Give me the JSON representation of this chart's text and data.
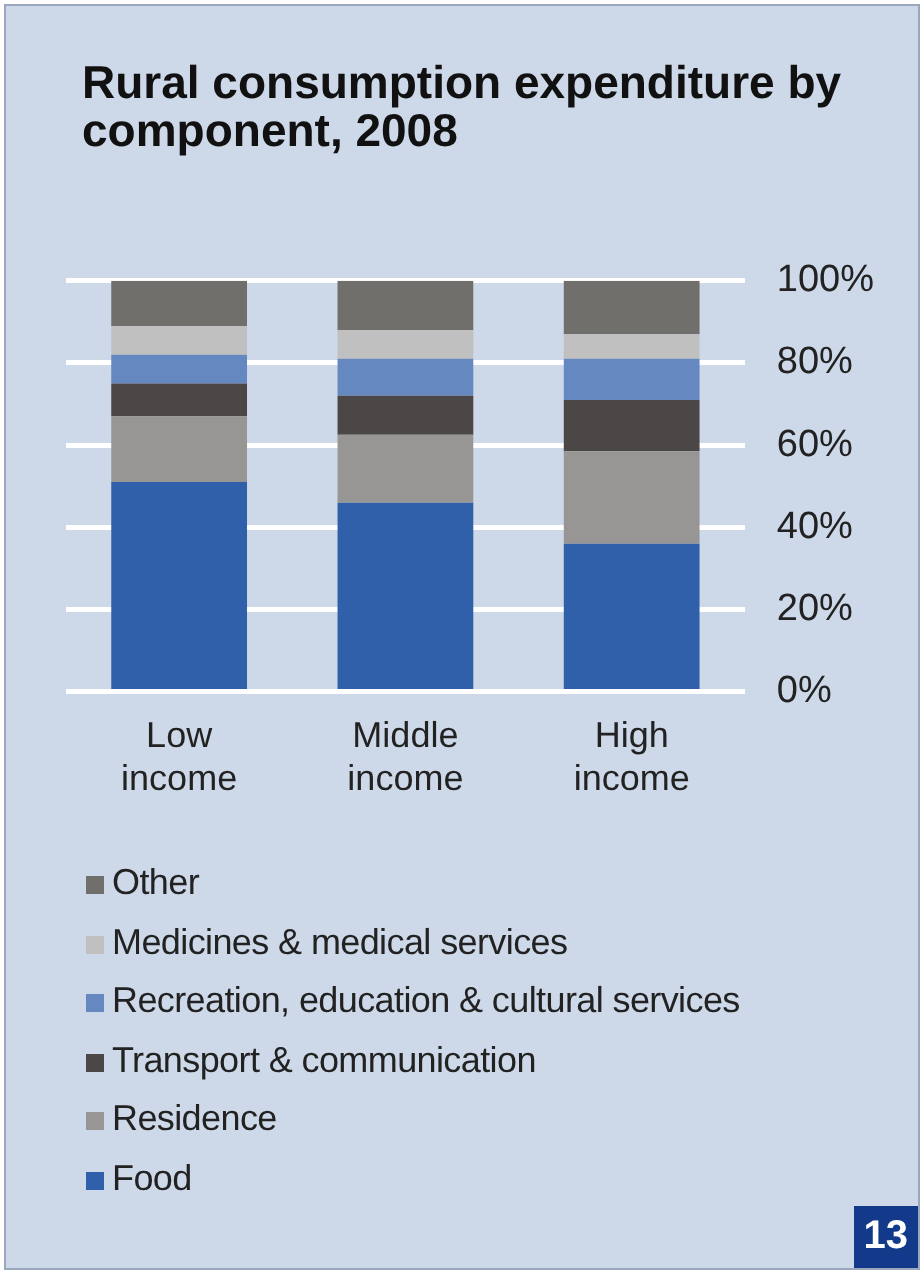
{
  "chart_data": {
    "type": "bar",
    "title": "Rural consumption expenditure by component, 2008",
    "categories": [
      "Low income",
      "Middle income",
      "High income"
    ],
    "stacked": true,
    "series": [
      {
        "name": "Food",
        "color": "#3160aa",
        "values": [
          51,
          46,
          36
        ]
      },
      {
        "name": "Residence",
        "color": "#979694",
        "values": [
          16,
          16.5,
          22.5
        ]
      },
      {
        "name": "Transport & communication",
        "color": "#4b4746",
        "values": [
          8,
          9.5,
          12.5
        ]
      },
      {
        "name": "Recreation, education & cultural services",
        "color": "#6688c0",
        "values": [
          7,
          9,
          10
        ]
      },
      {
        "name": "Medicines & medical services",
        "color": "#c0c0c0",
        "values": [
          7,
          7,
          6
        ]
      },
      {
        "name": "Other",
        "color": "#706f6c",
        "values": [
          11,
          12,
          13
        ]
      }
    ],
    "ylim": [
      0,
      100
    ],
    "yticks": [
      {
        "value": 0,
        "label": "0%"
      },
      {
        "value": 20,
        "label": "20%"
      },
      {
        "value": 40,
        "label": "40%"
      },
      {
        "value": 60,
        "label": "60%"
      },
      {
        "value": 80,
        "label": "80%"
      },
      {
        "value": 100,
        "label": "100%"
      }
    ],
    "grid": "y",
    "legend": "bottom",
    "annotations": [
      "13"
    ]
  }
}
